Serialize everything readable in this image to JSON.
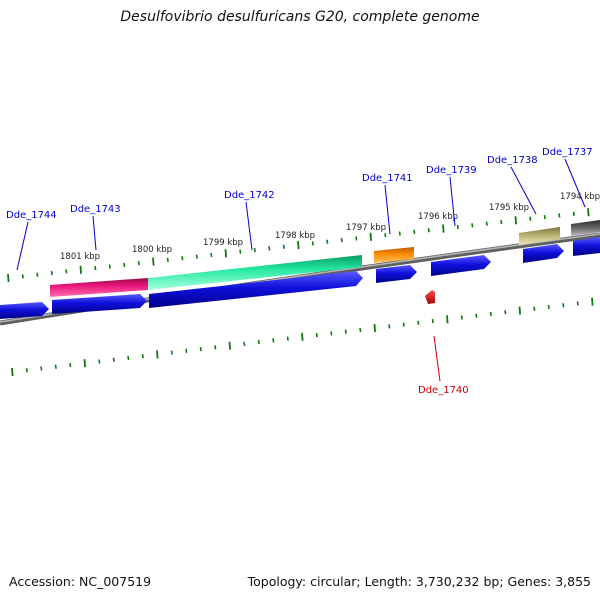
{
  "title": "Desulfovibrio desulfuricans G20, complete genome",
  "footer": {
    "accession": "Accession: NC_007519",
    "summary": "Topology: circular; Length: 3,730,232 bp; Genes: 3,855"
  },
  "colors": {
    "gene_label": "#0000cc",
    "selected_label": "#cc0000",
    "ticks": "#117711",
    "backbone": "#7a7a7a",
    "cds": "#1010dd"
  },
  "scale_labels": [
    "1801 kbp",
    "1800 kbp",
    "1799 kbp",
    "1798 kbp",
    "1797 kbp",
    "1796 kbp",
    "1795 kbp",
    "1794 kbp"
  ],
  "genes": [
    {
      "label": "Dde_1744",
      "strand": "-"
    },
    {
      "label": "Dde_1743",
      "strand": "-",
      "feature_color": "#e8157a"
    },
    {
      "label": "Dde_1742",
      "strand": "-",
      "feature_color": "#22e8a0"
    },
    {
      "label": "Dde_1741",
      "strand": "-",
      "feature_color": "#ff8c00"
    },
    {
      "label": "Dde_1739",
      "strand": "-"
    },
    {
      "label": "Dde_1738",
      "strand": "-",
      "feature_color": "#b8b070"
    },
    {
      "label": "Dde_1737",
      "strand": "-",
      "feature_color": "#606060"
    },
    {
      "label": "Dde_1740",
      "strand": "+",
      "selected": true
    }
  ]
}
